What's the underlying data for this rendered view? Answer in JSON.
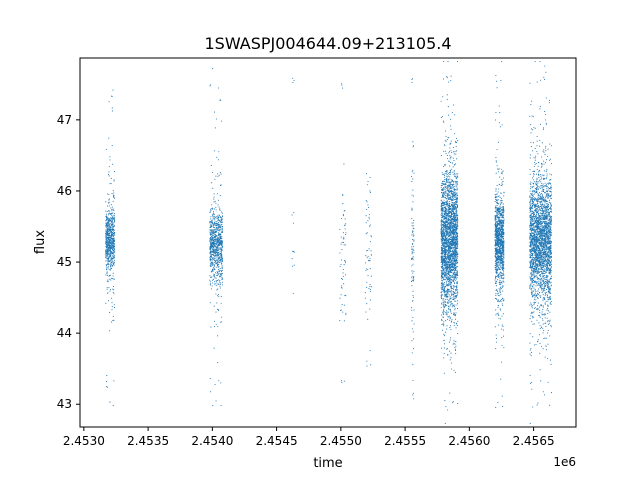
{
  "chart_data": {
    "type": "scatter",
    "title": "1SWASPJ004644.09+213105.4",
    "xlabel": "time",
    "ylabel": "flux",
    "x_offset_label": "1e6",
    "xlim": [
      2.45297,
      2.45683
    ],
    "ylim": [
      42.68,
      47.87
    ],
    "grid": false,
    "point_color": "#1f77b4",
    "xticks": [
      2.453,
      2.4535,
      2.454,
      2.4545,
      2.455,
      2.4555,
      2.456,
      2.4565
    ],
    "xtick_labels": [
      "2.4530",
      "2.4535",
      "2.4540",
      "2.4545",
      "2.4550",
      "2.4555",
      "2.4560",
      "2.4565"
    ],
    "yticks": [
      43,
      44,
      45,
      46,
      47
    ],
    "ytick_labels": [
      "43",
      "44",
      "45",
      "46",
      "47"
    ],
    "series": [
      {
        "observation_clusters": [
          {
            "x_range": [
              2.45317,
              2.45324
            ],
            "center": 45.3,
            "spread_core": 0.35,
            "spread_tail": 1.1,
            "outliers": [
              43.0,
              43.3,
              47.2,
              47.4
            ],
            "count": 700
          },
          {
            "x_range": [
              2.45398,
              2.45408
            ],
            "center": 45.25,
            "spread_core": 0.4,
            "spread_tail": 1.2,
            "outliers": [
              43.0,
              43.3,
              47.3,
              47.5
            ],
            "count": 800
          },
          {
            "x_range": [
              2.45462,
              2.45464
            ],
            "center": 45.4,
            "spread_core": 0.4,
            "spread_tail": 0.9,
            "outliers": [
              47.55
            ],
            "count": 10
          },
          {
            "x_range": [
              2.45499,
              2.45504
            ],
            "center": 45.0,
            "spread_core": 0.8,
            "spread_tail": 1.6,
            "outliers": [
              43.3,
              47.5
            ],
            "count": 60
          },
          {
            "x_range": [
              2.45519,
              2.45524
            ],
            "center": 45.2,
            "spread_core": 0.9,
            "spread_tail": 1.3,
            "outliers": [
              43.6
            ],
            "count": 60
          },
          {
            "x_range": [
              2.45555,
              2.45557
            ],
            "center": 45.2,
            "spread_core": 1.0,
            "spread_tail": 1.6,
            "outliers": [
              43.1,
              47.6
            ],
            "count": 90
          },
          {
            "x_range": [
              2.45578,
              2.45591
            ],
            "center": 45.3,
            "spread_core": 0.75,
            "spread_tail": 1.5,
            "outliers": [
              43.0,
              47.6
            ],
            "count": 2600
          },
          {
            "x_range": [
              2.4562,
              2.45627
            ],
            "center": 45.3,
            "spread_core": 0.5,
            "spread_tail": 1.3,
            "outliers": [
              43.0,
              47.6
            ],
            "count": 1100
          },
          {
            "x_range": [
              2.45647,
              2.45664
            ],
            "center": 45.3,
            "spread_core": 0.7,
            "spread_tail": 1.5,
            "outliers": [
              43.0,
              47.6
            ],
            "count": 2600
          }
        ]
      }
    ]
  }
}
